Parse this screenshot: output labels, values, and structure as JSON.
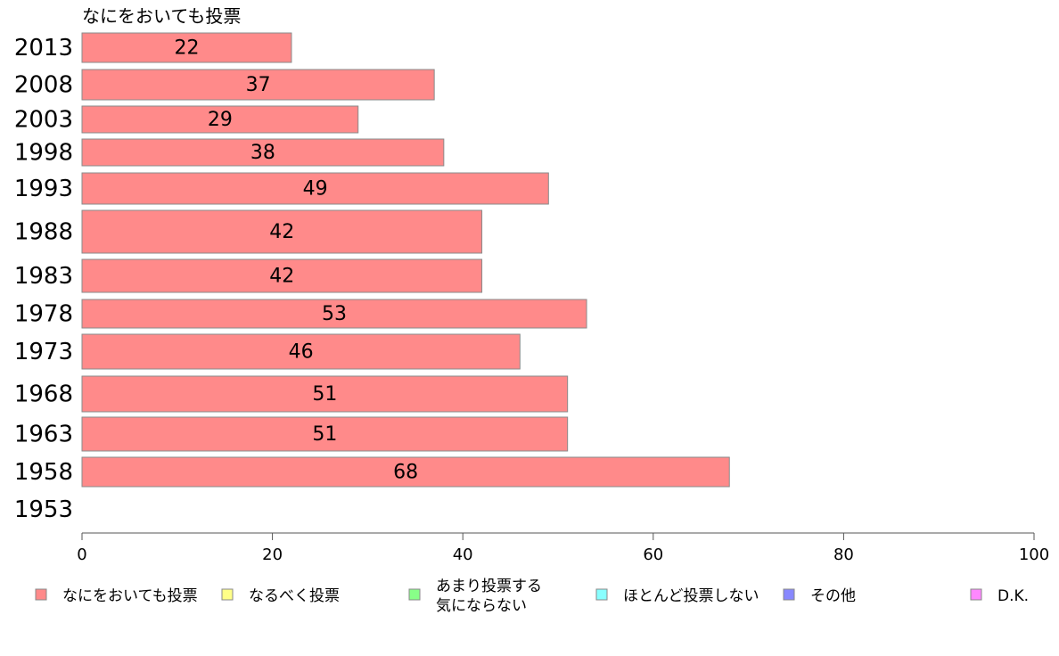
{
  "chart_data": {
    "type": "bar",
    "orientation": "horizontal",
    "title": "なにをおいても投票",
    "categories": [
      "2013",
      "2008",
      "2003",
      "1998",
      "1993",
      "1988",
      "1983",
      "1978",
      "1973",
      "1968",
      "1963",
      "1958",
      "1953"
    ],
    "series": [
      {
        "name": "なにをおいても投票",
        "color": "#ff8a8a",
        "values": [
          22,
          37,
          29,
          38,
          49,
          42,
          42,
          53,
          46,
          51,
          51,
          68,
          null
        ]
      }
    ],
    "xlim": [
      0,
      100
    ],
    "xticks": [
      0,
      20,
      40,
      60,
      80,
      100
    ],
    "grid": false,
    "legend": {
      "placement": "bottom",
      "entries": [
        {
          "label": "なにをおいても投票",
          "color": "#ff8a8a"
        },
        {
          "label": "なるべく投票",
          "color": "#ffff88"
        },
        {
          "label": "あまり投票する",
          "label_line2": "気にならない",
          "color": "#88ff88"
        },
        {
          "label": "ほとんど投票しない",
          "color": "#88ffff"
        },
        {
          "label": "その他",
          "color": "#8888ff"
        },
        {
          "label": "D.K.",
          "color": "#ff88ff"
        }
      ]
    }
  }
}
